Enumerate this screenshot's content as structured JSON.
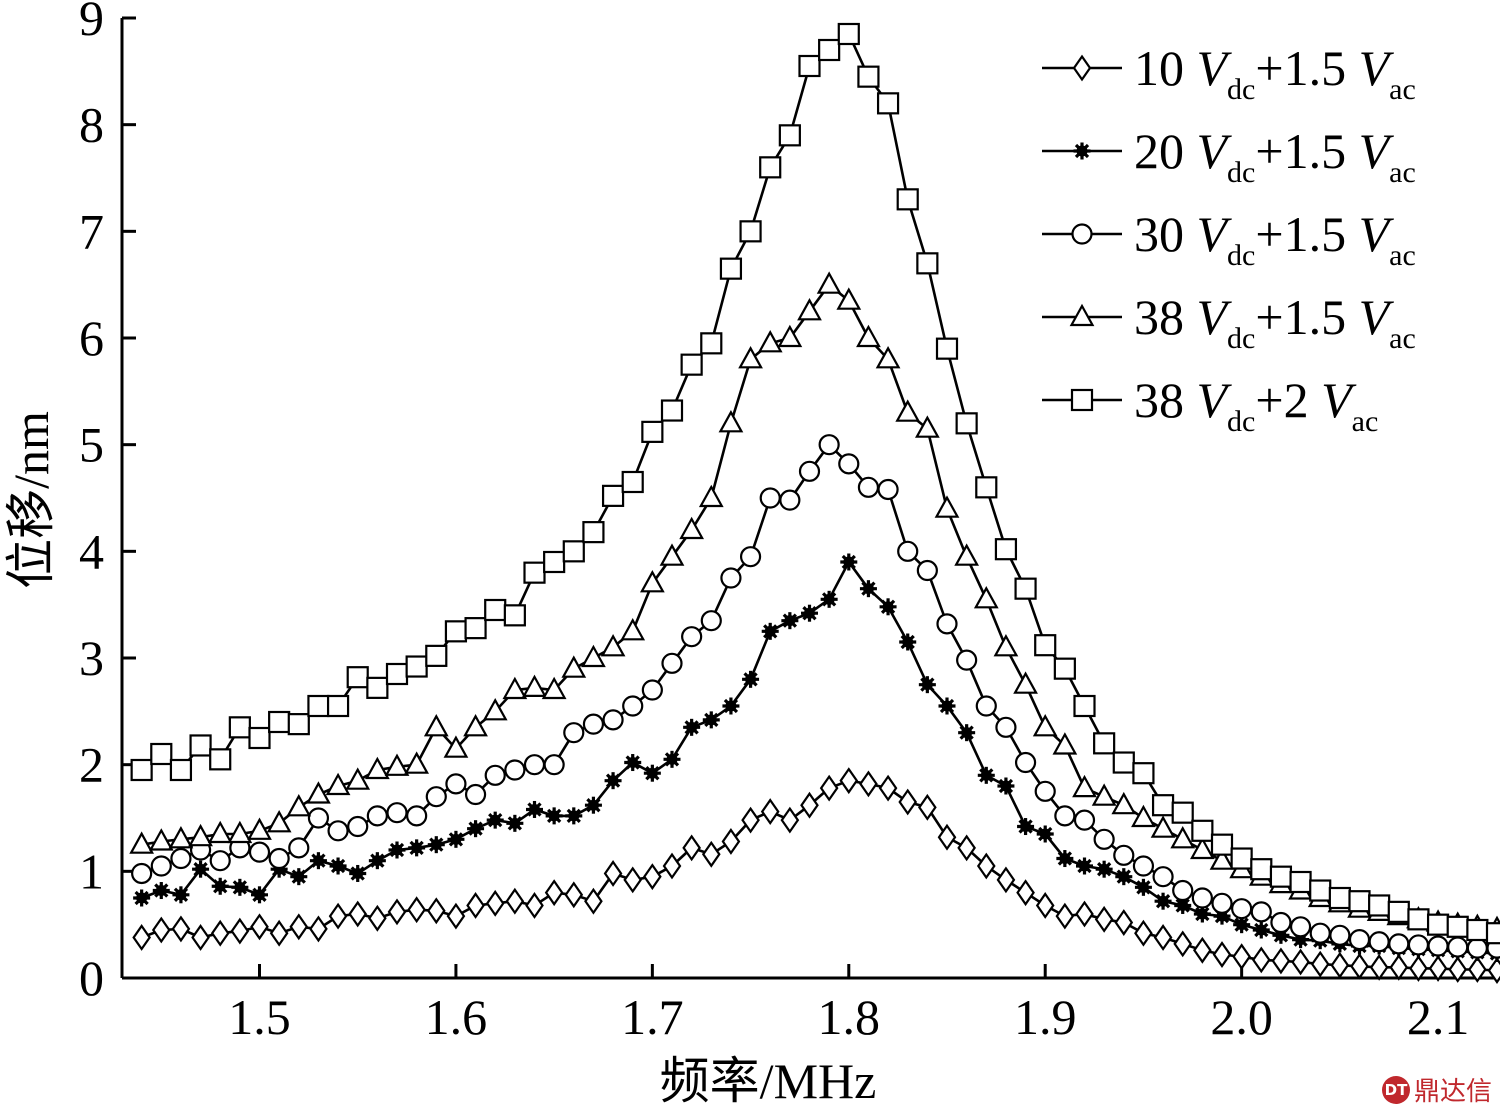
{
  "chart_data": {
    "type": "line",
    "xlabel": "频率/MHz",
    "ylabel": "位移/nm",
    "xlim": [
      1.43,
      2.13
    ],
    "ylim": [
      0,
      9
    ],
    "x_ticks": [
      "1.5",
      "1.6",
      "1.7",
      "1.8",
      "1.9",
      "2.0",
      "2.1"
    ],
    "y_ticks": [
      "0",
      "1",
      "2",
      "3",
      "4",
      "5",
      "6",
      "7",
      "8",
      "9"
    ],
    "legend_position": "top-right",
    "x": [
      1.44,
      1.45,
      1.46,
      1.47,
      1.48,
      1.49,
      1.5,
      1.51,
      1.52,
      1.53,
      1.54,
      1.55,
      1.56,
      1.57,
      1.58,
      1.59,
      1.6,
      1.61,
      1.62,
      1.63,
      1.64,
      1.65,
      1.66,
      1.67,
      1.68,
      1.69,
      1.7,
      1.71,
      1.72,
      1.73,
      1.74,
      1.75,
      1.76,
      1.77,
      1.78,
      1.79,
      1.8,
      1.81,
      1.82,
      1.83,
      1.84,
      1.85,
      1.86,
      1.87,
      1.88,
      1.89,
      1.9,
      1.91,
      1.92,
      1.93,
      1.94,
      1.95,
      1.96,
      1.97,
      1.98,
      1.99,
      2.0,
      2.01,
      2.02,
      2.03,
      2.04,
      2.05,
      2.06,
      2.07,
      2.08,
      2.09,
      2.1,
      2.11,
      2.12,
      2.13
    ],
    "series": [
      {
        "name_main": "10",
        "name_v1": "V",
        "name_sub1": "dc",
        "name_mid": "+1.5",
        "name_v2": "V",
        "name_sub2": "ac",
        "marker": "diamond",
        "values": [
          0.38,
          0.45,
          0.46,
          0.38,
          0.42,
          0.44,
          0.48,
          0.42,
          0.48,
          0.46,
          0.58,
          0.6,
          0.56,
          0.62,
          0.64,
          0.63,
          0.58,
          0.68,
          0.7,
          0.72,
          0.68,
          0.8,
          0.78,
          0.72,
          0.98,
          0.92,
          0.95,
          1.05,
          1.22,
          1.16,
          1.28,
          1.48,
          1.56,
          1.48,
          1.62,
          1.78,
          1.85,
          1.82,
          1.78,
          1.65,
          1.6,
          1.32,
          1.22,
          1.05,
          0.92,
          0.8,
          0.68,
          0.58,
          0.6,
          0.55,
          0.52,
          0.42,
          0.38,
          0.32,
          0.26,
          0.22,
          0.2,
          0.17,
          0.16,
          0.15,
          0.13,
          0.12,
          0.11,
          0.1,
          0.1,
          0.09,
          0.09,
          0.08,
          0.08,
          0.07
        ]
      },
      {
        "name_main": "20",
        "name_v1": "V",
        "name_sub1": "dc",
        "name_mid": "+1.5",
        "name_v2": "V",
        "name_sub2": "ac",
        "marker": "star",
        "values": [
          0.75,
          0.82,
          0.78,
          1.02,
          0.86,
          0.85,
          0.78,
          1.02,
          0.95,
          1.1,
          1.05,
          0.98,
          1.1,
          1.2,
          1.22,
          1.25,
          1.3,
          1.4,
          1.48,
          1.45,
          1.58,
          1.52,
          1.52,
          1.62,
          1.85,
          2.02,
          1.92,
          2.05,
          2.35,
          2.42,
          2.55,
          2.8,
          3.25,
          3.35,
          3.42,
          3.55,
          3.9,
          3.65,
          3.48,
          3.15,
          2.75,
          2.55,
          2.3,
          1.9,
          1.8,
          1.42,
          1.35,
          1.12,
          1.05,
          1.02,
          0.95,
          0.85,
          0.72,
          0.68,
          0.6,
          0.58,
          0.5,
          0.45,
          0.4,
          0.36,
          0.35,
          0.32,
          0.3,
          0.3,
          0.28,
          0.27,
          0.26,
          0.25,
          0.24,
          0.23
        ]
      },
      {
        "name_main": "30",
        "name_v1": "V",
        "name_sub1": "dc",
        "name_mid": "+1.5",
        "name_v2": "V",
        "name_sub2": "ac",
        "marker": "circle",
        "values": [
          0.98,
          1.05,
          1.12,
          1.2,
          1.1,
          1.22,
          1.18,
          1.12,
          1.22,
          1.5,
          1.38,
          1.42,
          1.52,
          1.55,
          1.52,
          1.7,
          1.82,
          1.72,
          1.9,
          1.95,
          2.0,
          2.0,
          2.3,
          2.38,
          2.42,
          2.55,
          2.7,
          2.95,
          3.2,
          3.35,
          3.75,
          3.95,
          4.5,
          4.48,
          4.75,
          5.0,
          4.82,
          4.6,
          4.58,
          4.0,
          3.82,
          3.32,
          2.98,
          2.55,
          2.35,
          2.02,
          1.75,
          1.52,
          1.48,
          1.3,
          1.15,
          1.05,
          0.95,
          0.82,
          0.75,
          0.7,
          0.65,
          0.62,
          0.52,
          0.48,
          0.42,
          0.4,
          0.36,
          0.34,
          0.32,
          0.31,
          0.3,
          0.29,
          0.28,
          0.28
        ]
      },
      {
        "name_main": "38",
        "name_v1": "V",
        "name_sub1": "dc",
        "name_mid": "+1.5",
        "name_v2": "V",
        "name_sub2": "ac",
        "marker": "triangle",
        "values": [
          1.25,
          1.28,
          1.3,
          1.32,
          1.35,
          1.35,
          1.38,
          1.45,
          1.6,
          1.72,
          1.8,
          1.85,
          1.95,
          1.98,
          2.0,
          2.35,
          2.15,
          2.35,
          2.5,
          2.7,
          2.72,
          2.7,
          2.9,
          3.0,
          3.1,
          3.25,
          3.7,
          3.95,
          4.2,
          4.5,
          5.2,
          5.8,
          5.95,
          6.0,
          6.25,
          6.5,
          6.35,
          6.0,
          5.8,
          5.3,
          5.15,
          4.4,
          3.95,
          3.55,
          3.1,
          2.75,
          2.35,
          2.18,
          1.78,
          1.7,
          1.62,
          1.5,
          1.4,
          1.3,
          1.2,
          1.1,
          1.02,
          0.95,
          0.88,
          0.82,
          0.75,
          0.7,
          0.65,
          0.62,
          0.58,
          0.55,
          0.52,
          0.5,
          0.48,
          0.46
        ]
      },
      {
        "name_main": "38",
        "name_v1": "V",
        "name_sub1": "dc",
        "name_mid": "+2",
        "name_v2": "V",
        "name_sub2": "ac",
        "marker": "square",
        "values": [
          1.95,
          2.1,
          1.95,
          2.18,
          2.05,
          2.35,
          2.25,
          2.4,
          2.38,
          2.55,
          2.55,
          2.82,
          2.72,
          2.85,
          2.92,
          3.02,
          3.25,
          3.28,
          3.45,
          3.4,
          3.8,
          3.9,
          4.0,
          4.18,
          4.52,
          4.65,
          5.12,
          5.32,
          5.75,
          5.95,
          6.65,
          7.0,
          7.6,
          7.9,
          8.55,
          8.7,
          8.85,
          8.45,
          8.2,
          7.3,
          6.7,
          5.9,
          5.2,
          4.6,
          4.02,
          3.65,
          3.12,
          2.9,
          2.55,
          2.2,
          2.02,
          1.92,
          1.62,
          1.55,
          1.38,
          1.25,
          1.12,
          1.02,
          0.95,
          0.9,
          0.82,
          0.75,
          0.72,
          0.68,
          0.62,
          0.55,
          0.5,
          0.48,
          0.45,
          0.42
        ]
      }
    ]
  },
  "watermark": {
    "logo": "DT",
    "text": "鼎达信"
  }
}
